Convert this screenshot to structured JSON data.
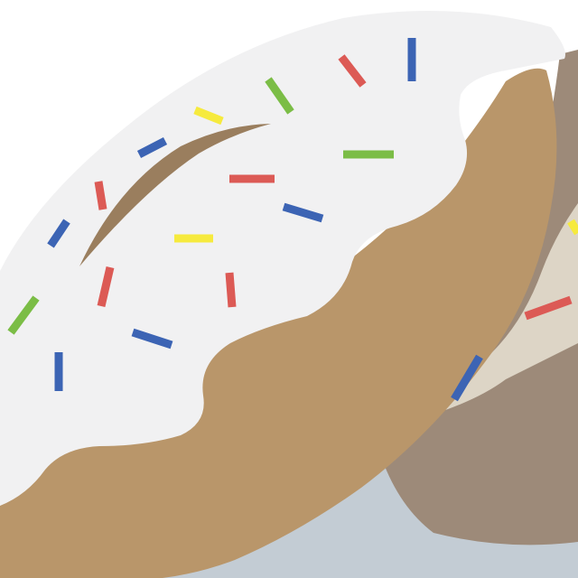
{
  "illustration": {
    "subject": "donut-icon",
    "colors": {
      "background": "#ffffff",
      "plate": "#c3ccd4",
      "dough": "#b9966a",
      "icing": "#f1f1f2",
      "icing_highlight": "#9a7e5e",
      "back_donut_dough": "#9d8a79",
      "back_donut_icing": "#ddd5c6",
      "sprinkle_red": "#dc5a55",
      "sprinkle_blue": "#3c64b4",
      "sprinkle_green": "#7bbd46",
      "sprinkle_yellow": "#f6ea3e"
    },
    "sprinkle_count": 23
  }
}
